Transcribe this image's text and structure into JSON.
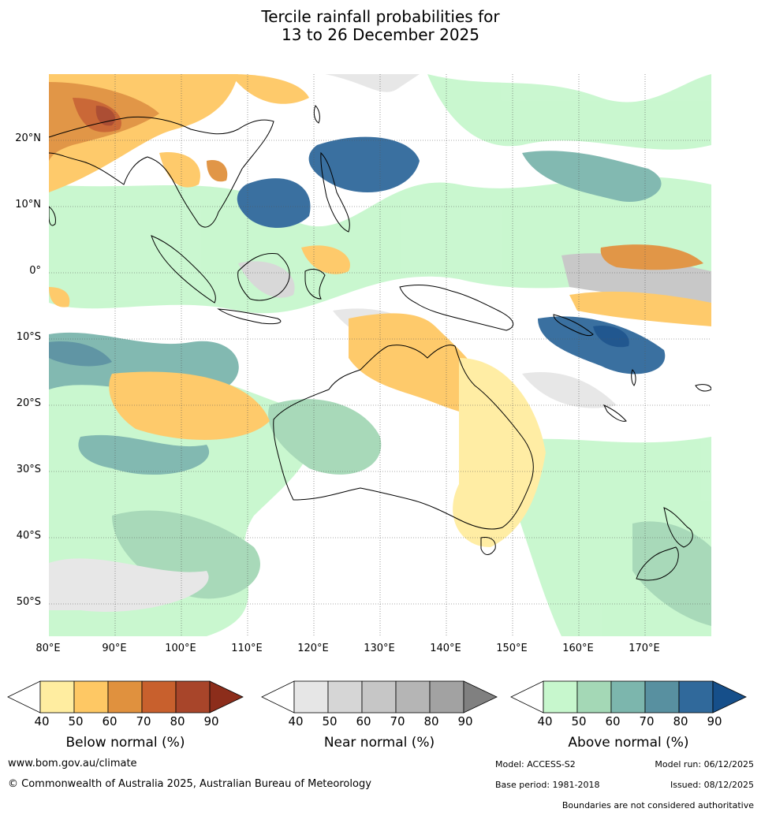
{
  "title": {
    "line1": "Tercile rainfall probabilities for",
    "line2": "13 to 26 December 2025"
  },
  "map": {
    "lon_range": [
      80,
      180
    ],
    "lat_range": [
      -55,
      30
    ],
    "lat_labels": [
      "20°N",
      "10°N",
      "0°",
      "10°S",
      "20°S",
      "30°S",
      "40°S",
      "50°S"
    ],
    "lon_labels": [
      "80°E",
      "90°E",
      "100°E",
      "110°E",
      "120°E",
      "130°E",
      "140°E",
      "150°E",
      "160°E",
      "170°E"
    ]
  },
  "legend": {
    "ticks": [
      "40",
      "50",
      "60",
      "70",
      "80",
      "90"
    ],
    "below": {
      "title": "Below normal (%)",
      "colors": [
        "#ffffff",
        "#ffeda0",
        "#fec864",
        "#e0913e",
        "#c8602d",
        "#a8452a",
        "#8c2d1b"
      ]
    },
    "near": {
      "title": "Near normal (%)",
      "colors": [
        "#ffffff",
        "#e6e6e6",
        "#d6d6d6",
        "#c6c6c6",
        "#b5b5b5",
        "#a2a2a2",
        "#808080"
      ]
    },
    "above": {
      "title": "Above normal (%)",
      "colors": [
        "#ffffff",
        "#c7f7cd",
        "#a4d8b6",
        "#7cb6ad",
        "#5890a0",
        "#30699b",
        "#164f8a"
      ]
    }
  },
  "footer": {
    "website": "www.bom.gov.au/climate",
    "copyright": "© Commonwealth of Australia 2025, Australian Bureau of Meteorology",
    "model": "Model: ACCESS-S2",
    "model_run": "Model run: 06/12/2025",
    "base_period": "Base period: 1981-2018",
    "issued": "Issued: 08/12/2025",
    "disclaimer": "Boundaries are not considered authoritative"
  }
}
